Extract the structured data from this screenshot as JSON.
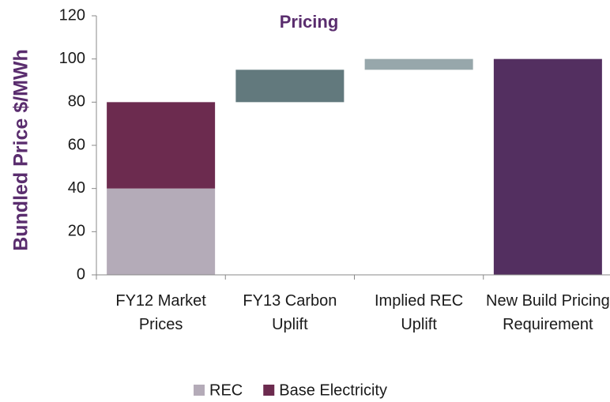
{
  "chart_data": {
    "type": "waterfall",
    "title": "Pricing",
    "ylabel": "Bundled Price $/MWh",
    "categories": [
      "FY12 Market Prices",
      "FY13 Carbon Uplift",
      "Implied REC Uplift",
      "New Build Pricing Requirement"
    ],
    "series": [
      {
        "name": "REC",
        "color": "#b4abb8",
        "values": [
          40,
          null,
          null,
          null
        ]
      },
      {
        "name": "Base Electricity",
        "color": "#6c2b4f",
        "values": [
          40,
          null,
          null,
          null
        ]
      }
    ],
    "steps": {
      "values": [
        null,
        15,
        5,
        100
      ],
      "colors": [
        null,
        "#62797d",
        "#97a7ab",
        "#532f60"
      ],
      "totals": [
        false,
        false,
        false,
        true
      ]
    },
    "ylim": [
      0,
      120
    ],
    "yticks": [
      0,
      20,
      40,
      60,
      80,
      100,
      120
    ],
    "grid": false,
    "legend": "bottom"
  }
}
